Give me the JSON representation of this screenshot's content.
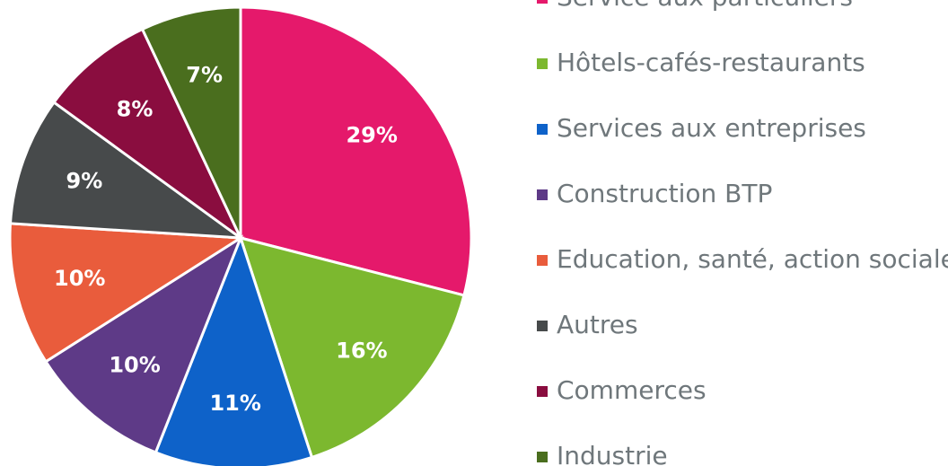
{
  "chart_data": {
    "type": "pie",
    "categories": [
      "Service aux particuliers",
      "Hôtels-cafés-restaurants",
      "Services aux entreprises",
      "Construction BTP",
      "Education, santé, action sociale",
      "Autres",
      "Commerces",
      "Industrie"
    ],
    "values": [
      29,
      16,
      11,
      10,
      10,
      9,
      8,
      7
    ],
    "value_labels": [
      "29%",
      "16%",
      "11%",
      "10%",
      "10%",
      "9%",
      "8%",
      "7%"
    ],
    "colors": [
      "#e5196b",
      "#7cb82f",
      "#0e62c9",
      "#5e3a87",
      "#e95c3c",
      "#474a4b",
      "#8a0d3f",
      "#4a6e1e"
    ],
    "legend": "right"
  }
}
